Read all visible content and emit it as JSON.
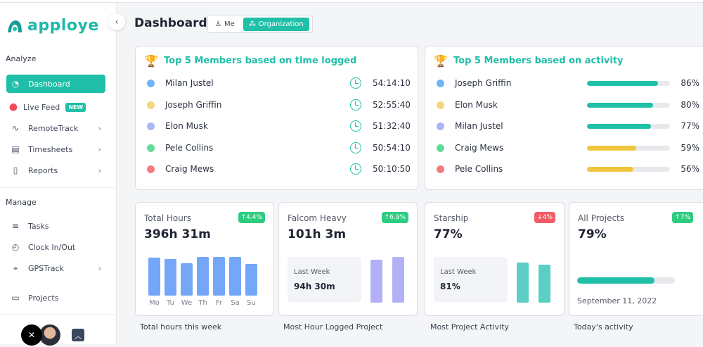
{
  "app": {
    "name": "apploye"
  },
  "sidebar": {
    "analyze_label": "Analyze",
    "items": [
      {
        "label": "Dashboard",
        "icon": "gauge-icon",
        "active": true
      },
      {
        "label": "Live Feed",
        "icon": "live-dot-icon",
        "badge": "NEW"
      },
      {
        "label": "RemoteTrack",
        "icon": "pulse-icon",
        "chevron": true
      },
      {
        "label": "Timesheets",
        "icon": "timesheet-icon",
        "chevron": true
      },
      {
        "label": "Reports",
        "icon": "report-icon",
        "chevron": true
      }
    ],
    "manage_label": "Manage",
    "manage_items": [
      {
        "label": "Tasks",
        "icon": "tasks-icon"
      },
      {
        "label": "Clock In/Out",
        "icon": "clock-icon"
      },
      {
        "label": "GPSTrack",
        "icon": "location-icon",
        "chevron": true
      },
      {
        "label": "Projects",
        "icon": "projects-icon"
      }
    ]
  },
  "header": {
    "title": "Dashboard",
    "toggle": {
      "me": "Me",
      "org": "Organization",
      "selected": "Organization"
    }
  },
  "time_card": {
    "title": "Top 5 Members based on time logged",
    "rows": [
      {
        "name": "Milan Justel",
        "time": "54:14:10",
        "color": "#6fb5f7"
      },
      {
        "name": "Joseph Griffin",
        "time": "52:55:40",
        "color": "#f5d67e"
      },
      {
        "name": "Elon Musk",
        "time": "51:32:40",
        "color": "#aab6f5"
      },
      {
        "name": "Pele Collins",
        "time": "50:54:10",
        "color": "#5fdc9a"
      },
      {
        "name": "Craig Mews",
        "time": "50:10:50",
        "color": "#f47a7e"
      }
    ]
  },
  "activity_card": {
    "title": "Top 5 Members based on activity",
    "rows": [
      {
        "name": "Joseph Griffin",
        "pct": 86,
        "label": "86%",
        "color": "#6fb5f7",
        "bar": "#1fbfa8"
      },
      {
        "name": "Elon Musk",
        "pct": 80,
        "label": "80%",
        "color": "#f5d67e",
        "bar": "#1fbfa8"
      },
      {
        "name": "Milan Justel",
        "pct": 77,
        "label": "77%",
        "color": "#aab6f5",
        "bar": "#1fbfa8"
      },
      {
        "name": "Craig Mews",
        "pct": 59,
        "label": "59%",
        "color": "#5fdc9a",
        "bar": "#f0c53e"
      },
      {
        "name": "Pele Collins",
        "pct": 56,
        "label": "56%",
        "color": "#f47a7e",
        "bar": "#f0c53e"
      }
    ]
  },
  "stats": [
    {
      "label": "Total Hours",
      "value": "396h 31m",
      "badge": "↑4.4%",
      "badge_color": "#2ecc80",
      "caption": "Total hours this week",
      "days": [
        "Mo",
        "Tu",
        "We",
        "Th",
        "Fr",
        "Sa",
        "Su"
      ],
      "day_levels": [
        0.87,
        0.84,
        0.75,
        0.89,
        0.88,
        0.88,
        0.72
      ]
    },
    {
      "label": "Falcom Heavy",
      "value": "101h 3m",
      "badge": "↑6.9%",
      "badge_color": "#2ecc80",
      "caption": "Most Hour Logged Project",
      "last_week_label": "Last Week",
      "last_week_value": "94h 30m",
      "bar_levels": [
        0.94,
        1.0
      ],
      "bar_color": "#b3b0f7"
    },
    {
      "label": "Starship",
      "value": "77%",
      "badge": "↓4%",
      "badge_color": "#f25c66",
      "caption": "Most Project Activity",
      "last_week_label": "Last Week",
      "last_week_value": "81%",
      "bar_levels": [
        0.87,
        0.83
      ],
      "bar_color": "#5ccfc4"
    },
    {
      "label": "All Projects",
      "value": "79%",
      "badge": "↑7%",
      "badge_color": "#2ecc80",
      "caption": "Today's activity",
      "progress": 79,
      "date": "September 11, 2022"
    }
  ]
}
